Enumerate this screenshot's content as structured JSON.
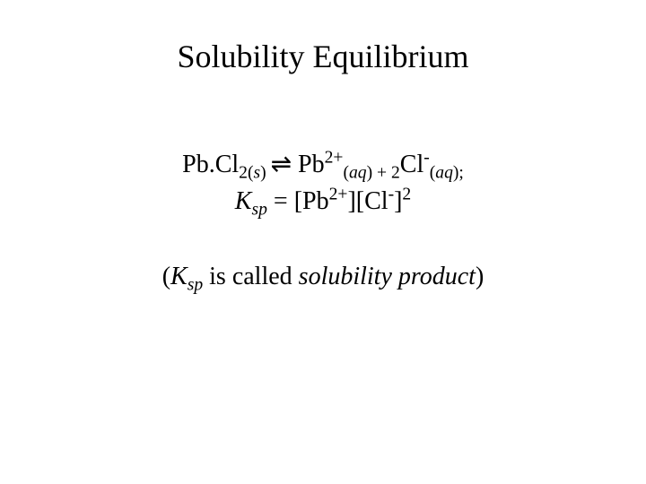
{
  "title": "Solubility Equilibrium",
  "eq": {
    "t1": "Pb.Cl",
    "t2": "2(",
    "t3": "s",
    "t4": ") ",
    "arrow": "⇌",
    "t5": "  Pb",
    "t6": "2+",
    "t7": "(",
    "t8": "aq",
    "t9": ")  +  2",
    "t10": "Cl",
    "t11": "-",
    "t12": "(",
    "t13": "aq",
    "t14": ");"
  },
  "ksp": {
    "k1": "K",
    "k2": "sp",
    "k3": " = [Pb",
    "k4": "2+",
    "k5": "][Cl",
    "k6": "-",
    "k7": "]",
    "k8": "2"
  },
  "note": {
    "n1": "(",
    "n2": "K",
    "n3": "sp",
    "n4": " is called ",
    "n5": "solubility product",
    "n6": ")"
  },
  "style": {
    "background": "#ffffff",
    "text_color": "#000000",
    "title_fontsize": 36,
    "body_fontsize": 28,
    "font_family": "Times New Roman"
  }
}
